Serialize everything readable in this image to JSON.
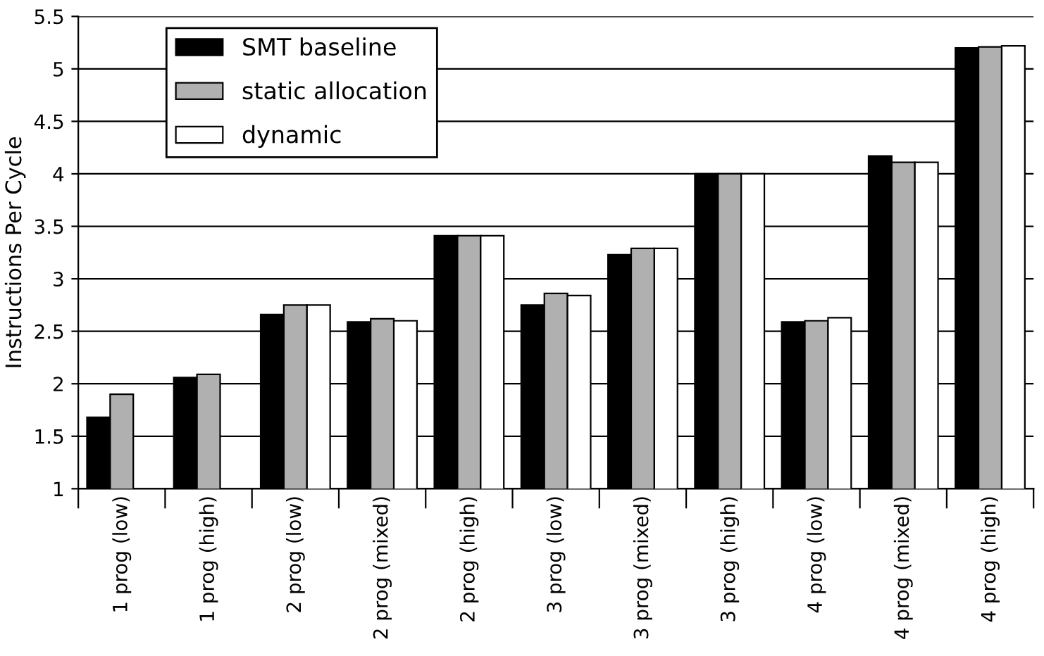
{
  "chart_data": {
    "type": "bar",
    "ylabel": "Instructions Per Cycle",
    "categories": [
      "1 prog (low)",
      "1 prog (high)",
      "2 prog (low)",
      "2 prog (mixed)",
      "2 prog (high)",
      "3 prog (low)",
      "3 prog (mixed)",
      "3 prog (high)",
      "4 prog (low)",
      "4 prog (mixed)",
      "4 prog (high)"
    ],
    "series": [
      {
        "name": "SMT baseline",
        "color": "#000000",
        "values": [
          1.68,
          2.06,
          2.66,
          2.59,
          3.41,
          2.75,
          3.23,
          4.0,
          2.59,
          4.17,
          5.2
        ]
      },
      {
        "name": "static allocation",
        "color": "#b0b0b0",
        "values": [
          1.9,
          2.09,
          2.75,
          2.62,
          3.41,
          2.86,
          3.29,
          4.0,
          2.6,
          4.11,
          5.21
        ]
      },
      {
        "name": "dynamic",
        "color": "#ffffff",
        "values": [
          null,
          null,
          2.75,
          2.6,
          3.41,
          2.84,
          3.29,
          4.0,
          2.63,
          4.11,
          5.22
        ]
      }
    ],
    "ylim": [
      1,
      5.5
    ],
    "yticks": [
      1,
      1.5,
      2,
      2.5,
      3,
      3.5,
      4,
      4.5,
      5,
      5.5
    ],
    "grid": "y",
    "legend": "top left"
  }
}
